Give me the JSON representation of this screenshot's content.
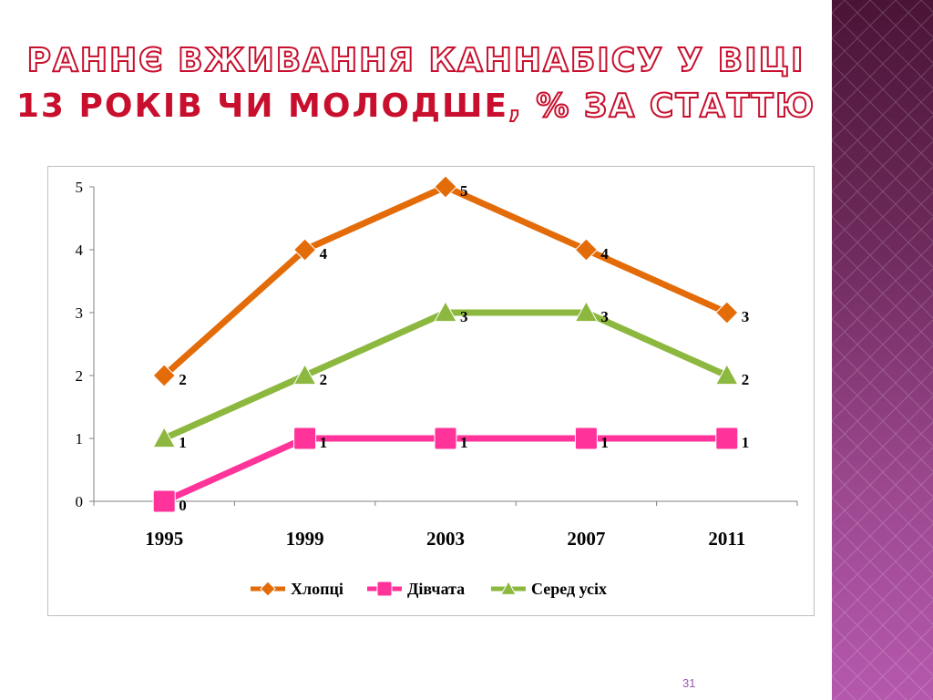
{
  "title": {
    "line1": "РАННЄ ВЖИВАННЯ КАННАБІСУ У ВІЦІ",
    "line2_red": "13 РОКІВ ЧИ МОЛОДШЕ",
    "line2_outline": ", % ЗА СТАТТЮ"
  },
  "slide_number": "31",
  "colors": {
    "accent": "#c8102e",
    "band": "#7a2f6a"
  },
  "chart_data": {
    "type": "line",
    "categories": [
      "1995",
      "1999",
      "2003",
      "2007",
      "2011"
    ],
    "ylim": [
      0,
      5
    ],
    "yticks": [
      "0",
      "1",
      "2",
      "3",
      "4",
      "5"
    ],
    "legend_position": "bottom",
    "series": [
      {
        "name": "Хлопці",
        "values": [
          2,
          4,
          5,
          4,
          3
        ],
        "color": "#e36c09",
        "marker": "diamond"
      },
      {
        "name": "Дівчата",
        "values": [
          0,
          1,
          1,
          1,
          1
        ],
        "color": "#ff3399",
        "marker": "square"
      },
      {
        "name": "Серед усіх",
        "values": [
          1,
          2,
          3,
          3,
          2
        ],
        "color": "#8db83f",
        "marker": "triangle"
      }
    ]
  }
}
